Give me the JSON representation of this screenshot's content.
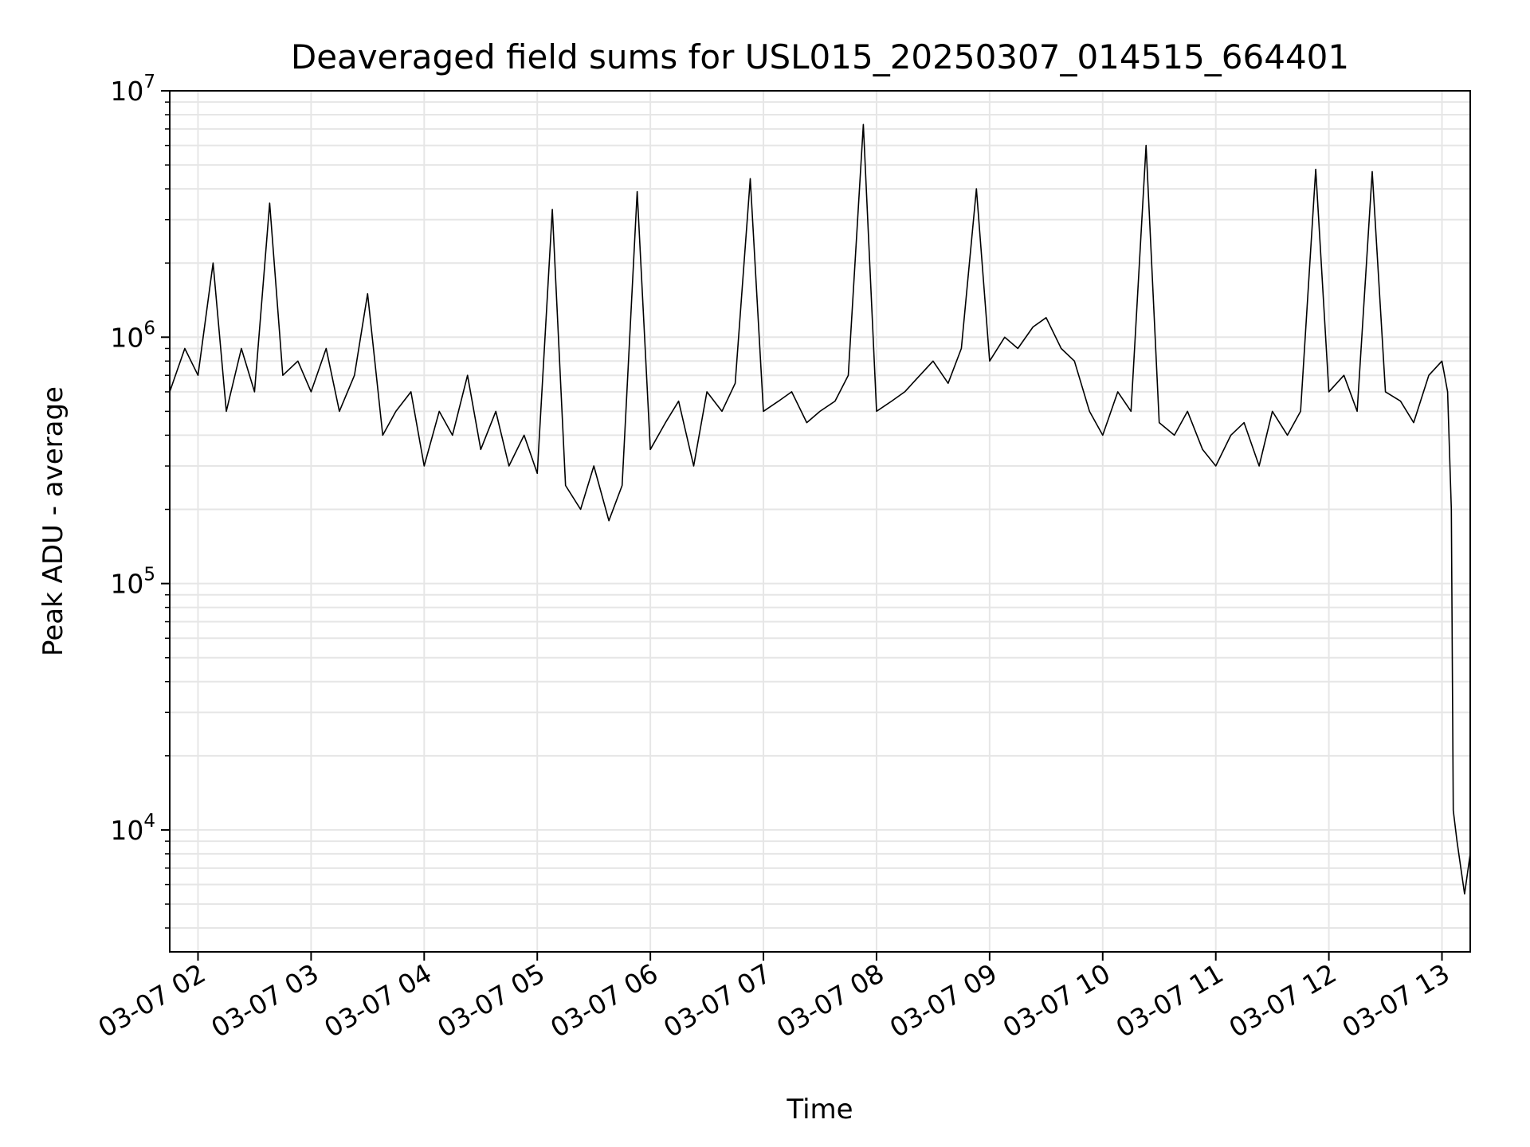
{
  "chart_data": {
    "type": "line",
    "title": "Deaveraged field sums for USL015_20250307_014515_664401",
    "xlabel": "Time",
    "ylabel": "Peak ADU - average",
    "yscale": "log",
    "ylim": [
      3200,
      10000000
    ],
    "xlim": [
      "2025-03-07 01:45",
      "2025-03-07 13:15"
    ],
    "xticks": [
      "03-07 02",
      "03-07 03",
      "03-07 04",
      "03-07 05",
      "03-07 06",
      "03-07 07",
      "03-07 08",
      "03-07 09",
      "03-07 10",
      "03-07 11",
      "03-07 12",
      "03-07 13"
    ],
    "yticks": [
      {
        "base": "10",
        "exp": "4",
        "value": 10000
      },
      {
        "base": "10",
        "exp": "5",
        "value": 100000
      },
      {
        "base": "10",
        "exp": "6",
        "value": 1000000
      },
      {
        "base": "10",
        "exp": "7",
        "value": 10000000
      }
    ],
    "grid": true,
    "series_color": "#000000",
    "grid_color": "#e6e6e6",
    "series": [
      {
        "x": [
          "2025-03-07 01:45",
          "2025-03-07 01:53",
          "2025-03-07 02:00",
          "2025-03-07 02:08",
          "2025-03-07 02:15",
          "2025-03-07 02:23",
          "2025-03-07 02:30",
          "2025-03-07 02:38",
          "2025-03-07 02:45",
          "2025-03-07 02:53",
          "2025-03-07 03:00",
          "2025-03-07 03:08",
          "2025-03-07 03:15",
          "2025-03-07 03:23",
          "2025-03-07 03:30",
          "2025-03-07 03:38",
          "2025-03-07 03:45",
          "2025-03-07 03:53",
          "2025-03-07 04:00",
          "2025-03-07 04:08",
          "2025-03-07 04:15",
          "2025-03-07 04:23",
          "2025-03-07 04:30",
          "2025-03-07 04:38",
          "2025-03-07 04:45",
          "2025-03-07 04:53",
          "2025-03-07 05:00",
          "2025-03-07 05:08",
          "2025-03-07 05:15",
          "2025-03-07 05:23",
          "2025-03-07 05:30",
          "2025-03-07 05:38",
          "2025-03-07 05:45",
          "2025-03-07 05:53",
          "2025-03-07 06:00",
          "2025-03-07 06:08",
          "2025-03-07 06:15",
          "2025-03-07 06:23",
          "2025-03-07 06:30",
          "2025-03-07 06:38",
          "2025-03-07 06:45",
          "2025-03-07 06:53",
          "2025-03-07 07:00",
          "2025-03-07 07:08",
          "2025-03-07 07:15",
          "2025-03-07 07:23",
          "2025-03-07 07:30",
          "2025-03-07 07:38",
          "2025-03-07 07:45",
          "2025-03-07 07:53",
          "2025-03-07 08:00",
          "2025-03-07 08:08",
          "2025-03-07 08:15",
          "2025-03-07 08:23",
          "2025-03-07 08:30",
          "2025-03-07 08:38",
          "2025-03-07 08:45",
          "2025-03-07 08:53",
          "2025-03-07 09:00",
          "2025-03-07 09:08",
          "2025-03-07 09:15",
          "2025-03-07 09:23",
          "2025-03-07 09:30",
          "2025-03-07 09:38",
          "2025-03-07 09:45",
          "2025-03-07 09:53",
          "2025-03-07 10:00",
          "2025-03-07 10:08",
          "2025-03-07 10:15",
          "2025-03-07 10:23",
          "2025-03-07 10:30",
          "2025-03-07 10:38",
          "2025-03-07 10:45",
          "2025-03-07 10:53",
          "2025-03-07 11:00",
          "2025-03-07 11:08",
          "2025-03-07 11:15",
          "2025-03-07 11:23",
          "2025-03-07 11:30",
          "2025-03-07 11:38",
          "2025-03-07 11:45",
          "2025-03-07 11:53",
          "2025-03-07 12:00",
          "2025-03-07 12:08",
          "2025-03-07 12:15",
          "2025-03-07 12:23",
          "2025-03-07 12:30",
          "2025-03-07 12:38",
          "2025-03-07 12:45",
          "2025-03-07 12:53",
          "2025-03-07 13:00",
          "2025-03-07 13:03",
          "2025-03-07 13:05",
          "2025-03-07 13:06",
          "2025-03-07 13:08",
          "2025-03-07 13:10",
          "2025-03-07 13:12",
          "2025-03-07 13:15"
        ],
        "values": [
          600000,
          900000,
          700000,
          2000000,
          500000,
          900000,
          600000,
          3500000,
          700000,
          800000,
          600000,
          900000,
          500000,
          700000,
          1500000,
          400000,
          500000,
          600000,
          300000,
          500000,
          400000,
          700000,
          350000,
          500000,
          300000,
          400000,
          280000,
          3300000,
          250000,
          200000,
          300000,
          180000,
          250000,
          3900000,
          350000,
          450000,
          550000,
          300000,
          600000,
          500000,
          650000,
          4400000,
          500000,
          550000,
          600000,
          450000,
          500000,
          550000,
          700000,
          7300000,
          500000,
          550000,
          600000,
          700000,
          800000,
          650000,
          900000,
          4000000,
          800000,
          1000000,
          900000,
          1100000,
          1200000,
          900000,
          800000,
          500000,
          400000,
          600000,
          500000,
          6000000,
          450000,
          400000,
          500000,
          350000,
          300000,
          400000,
          450000,
          300000,
          500000,
          400000,
          500000,
          4800000,
          600000,
          700000,
          500000,
          4700000,
          600000,
          550000,
          450000,
          700000,
          800000,
          600000,
          200000,
          12000,
          9000,
          7000,
          5500,
          8000
        ]
      }
    ]
  }
}
